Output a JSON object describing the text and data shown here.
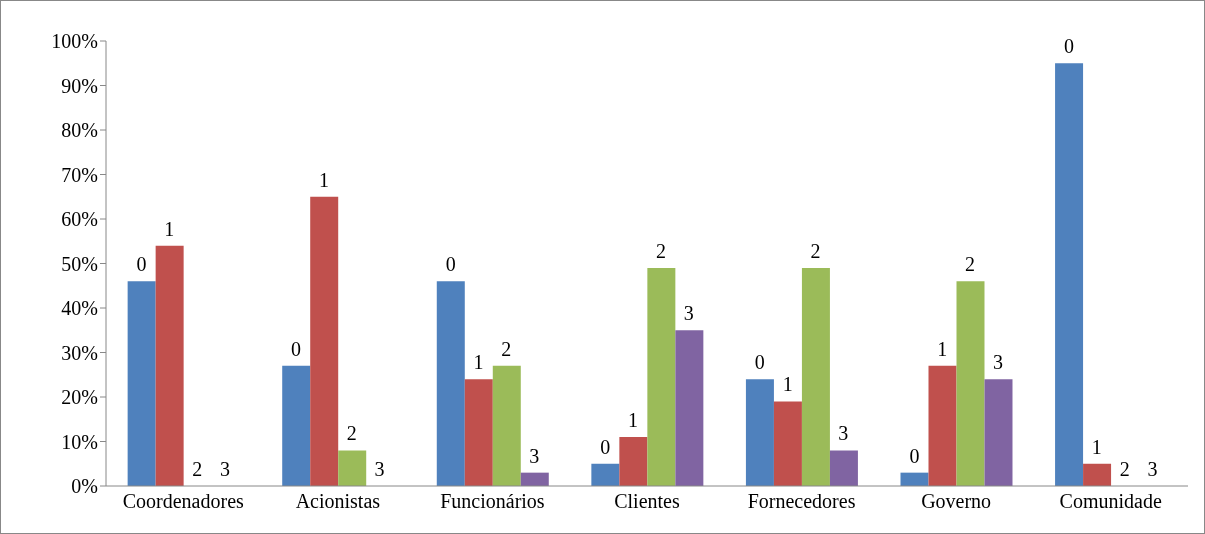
{
  "chart_data": {
    "type": "bar",
    "categories": [
      "Coordenadores",
      "Acionistas",
      "Funcionários",
      "Clientes",
      "Fornecedores",
      "Governo",
      "Comunidade"
    ],
    "series": [
      {
        "name": "0",
        "color": "#4f81bd",
        "values": [
          46,
          27,
          46,
          5,
          24,
          3,
          95
        ]
      },
      {
        "name": "1",
        "color": "#c0504d",
        "values": [
          54,
          65,
          24,
          11,
          19,
          27,
          5
        ]
      },
      {
        "name": "2",
        "color": "#9bbb59",
        "values": [
          0,
          8,
          27,
          49,
          49,
          46,
          0
        ]
      },
      {
        "name": "3",
        "color": "#8064a2",
        "values": [
          0,
          0,
          3,
          35,
          8,
          24,
          0
        ]
      }
    ],
    "ylim": [
      0,
      100
    ],
    "yticks": [
      {
        "value": 0,
        "label": "0%"
      },
      {
        "value": 10,
        "label": "10%"
      },
      {
        "value": 20,
        "label": "20%"
      },
      {
        "value": 30,
        "label": "30%"
      },
      {
        "value": 40,
        "label": "40%"
      },
      {
        "value": 50,
        "label": "50%"
      },
      {
        "value": 60,
        "label": "60%"
      },
      {
        "value": 70,
        "label": "70%"
      },
      {
        "value": 80,
        "label": "80%"
      },
      {
        "value": 90,
        "label": "90%"
      },
      {
        "value": 100,
        "label": "100%"
      }
    ],
    "grid": false,
    "legend": false
  }
}
